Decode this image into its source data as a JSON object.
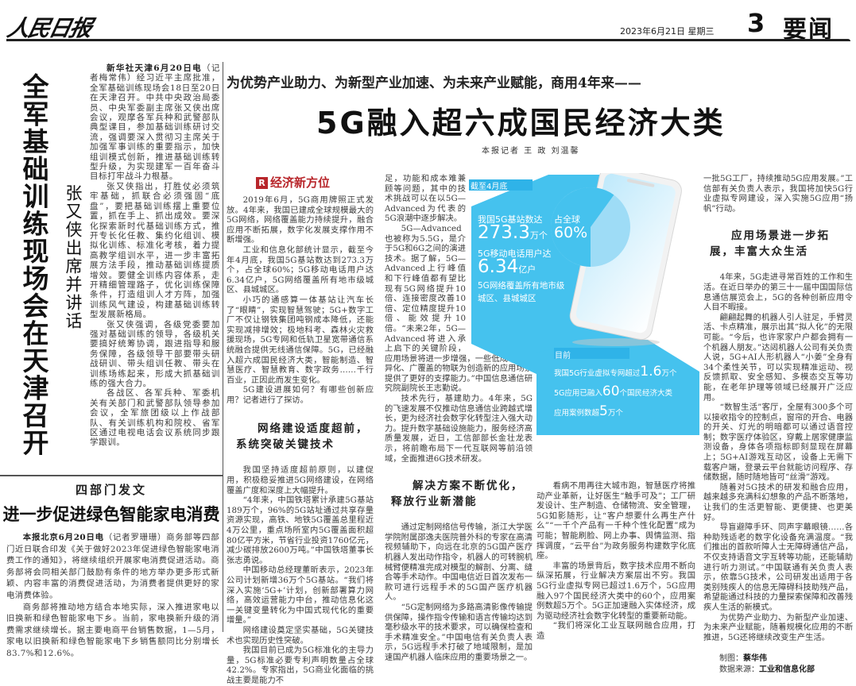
{
  "masthead": {
    "logo": "人民日报",
    "date": "2023年6月21日 星期三",
    "page_number": "3",
    "section": "要闻"
  },
  "left_story": {
    "headline": "全军基础训练现场会在天津召开",
    "subheadline": "张又侠出席并讲话",
    "dateline": "新华社天津6月20日电",
    "paragraphs": [
      "（记者梅常伟）经习近平主席批准，全军基础训练现场会18日至20日在天津召开。中共中央政治局委员、中央军委副主席张又侠出席会议，观摩各军兵种和武警部队典型课目，参加基础训练研讨交流，强调要深入贯彻习主席关于加强军事训练的重要指示，加快组训模式创新，推进基础训练转型升级，为实现建军一百年奋斗目标打牢战斗力根基。",
      "张又侠指出，打胜仗必须筑牢基础，抓联合必须强固“底盘”，要把基础训练摆上重要位置，抓在手上、抓出成效。要深化探索新时代基础训练方式，推开专长化任教、集约化组训、模拟化训练、标准化考核，着力提高教学组训水平，进一步丰富拓展方法手段，推动基础训练提质增效。要健全训练内容体系，走开精细管理路子，优化训练保障条件，打造组训人才方阵，加强训练风气建设，构建基础训练转型发展新格局。",
      "张又侠强调，各级党委要加强对基础训练的领导，各级机关要搞好统筹协调，跟进指导和服务保障，各级领导干部要带头研战研训、带头组训任教、带头在训练场练起来，形成大抓基础训练的强大合力。",
      "各战区、各军兵种、军委机关有关部门和武警部队领导参加会议，全军旅团级以上作战部队、有关训练机构和院校、省军区通过电视电话会议系统同步跟学跟训。"
    ]
  },
  "bottom_story": {
    "kicker": "四部门发文",
    "headline": "进一步促进绿色智能家电消费",
    "dateline": "本报北京6月20日电",
    "paragraphs": [
      "（记者罗珊珊）商务部等四部门近日联合印发《关于做好2023年促进绿色智能家电消费工作的通知》，将继续组织开展家电消费促进活动。商务部将会同相关部门鼓励有条件的地方举办更多形式新颖、内容丰富的消费促进活动，为消费者提供更好的家电消费体验。",
      "商务部将推动地方结合本地实际，深入推进家电以旧换新和绿色智能家电下乡。当前，家电换新升级的消费需求继续增长。据主要电商平台销售数据，1—5月，家电以旧换新和绿色智能家电下乡销售额同比分别增长83.7%和12.6%。"
    ]
  },
  "main_story": {
    "kicker": "为优势产业助力、为新型产业加速、为未来产业赋能，商用4年来——",
    "title": "5G融入超六成国民经济大类",
    "byline": "本报记者  王 政  刘温馨",
    "column_tag_icon": "R",
    "column_tag": "经济新方位",
    "col1_paragraphs": [
      "2019年6月，5G商用牌照正式发放。4年来，我国已建成全球规模最大的5G网络，网络覆盖能力持续提升，融合应用不断拓展，数字化发展支撑作用不断增强。",
      "工业和信息化部统计显示，截至今年4月底，我国5G基站数达到273.3万个，占全球60%；5G移动电话用户达6.34亿户，5G网络覆盖所有地市级城区、县城城区。",
      "小巧的通感算一体基站让汽车长了“眼睛”，实现智慧驾驶；5G+数字工厂不仅让钢铁集团吨钢成本降低，还能实现减排增效；极地科考、森林火灾救援现场，5G专网和低轨卫星宽带通信系统融合提供无线通信保障。5G，已经融入超六成国民经济大类，智能制造、智慧医疗、智慧教育、数字政务……千行百业，正因此而发生变化。",
      "5G建设进展如何？有哪些创新应用？记者进行了探访。"
    ],
    "subhead1": "网络建设适度超前，系统突破关键技术",
    "col1b_paragraphs": [
      "我国坚持适度超前原则，以建促用，积极稳妥推进5G网络建设，在网络覆盖广度和深度上大幅提升。",
      "“4年来，中国铁塔累计承建5G基站189万个，96%的5G站址通过共享存量资源实现，高铁、地铁5G覆盖总里程近4万公里，重点场所室内5G覆盖面积超80亿平方米，节省行业投资1760亿元，减少碳排放2600万吨。”中国铁塔董事长张志勇说。",
      "中国移动总经理董昕表示，2023年公司计划新增36万个5G基站。“我们将深入实施‘5G+’计划，创新部署算力网络，高效运营能力中台，推动信息化这一关键变量转化为中国式现代化的重要增量。”",
      "网络建设奠定坚实基础，5G关键技术也实现历史性突破。",
      "我国目前已成为5G标准化的主导力量，5G标准必要专利声明数量占全球42.2%。专家指出，5G商业化面临的挑战主要是能力不"
    ],
    "col2_paragraphs": [
      "足，功能和成本难兼顾等问题，其中的技术挑战可以在以5G—Advanced为代表的5G浪潮中逐步解决。",
      "5G—Advanced也被称为5.5G，是介于5G和6G之间的演进技术。据了解，5G—Advanced上行峰值和下行峰值都有望比现有5G网络提升10倍、连接密度改善10倍、定位精度提升10倍、能效提升10倍。“未来2年，5G—Advanced将进入承上启下的关键阶段，应用场景将进一步增强，一些低成本、差异化、广覆盖的物联为创造新的应用场景提供了更好的支撑能力。”中国信息通信研究院副院长王志勤说。",
      "技术先行，基建助力。4年来，5G的飞速发展不仅推动信息通信业跨越式增长，更为经济社会数字化转型注入强大动力。提升数字基础设施能力，服务经济高质量发展，近日，工信部部长金壮龙表示，将前瞻布局下一代互联网等前沿领域，全面推进6G技术研发。"
    ],
    "subhead2": "解决方案不断优化，释放行业新潜能",
    "col2b_paragraphs": [
      "通过定制网络信号传输，浙江大学医学院附属邵逸夫医院普外科的专家在高清视频辅助下，向远在北京的5G国产医疗机器人发出动作指令，机器人的可转腕机械臂便精准完成对模型的解剖、分离、缝合等手术动作。中国电信近日首次发布一款可进行远程手术的5G国产医疗机器人。",
      "“5G定制网络为多路高清影像传输提供保障，操作指令传输和语言传输均达到毫秒级水平的技术要求，可以确保检查和手术精准安全。”中国电信有关负责人表示，5G远程手术打破了地域限制，是加速国产机器人临床应用的重要场景之一。"
    ],
    "col3_paragraphs": [
      "看病不用再往大城市跑，智慧医疗将推动产业革新，让好医生“触手可及”；工厂研发设计、生产制造、仓储物流、安全管理，5G如影随形，让“客户想要什么再生产什么”“一千个产品有一千种个性化配置”成为可能；智能刷脸、网上办事、舆情监测、指挥调度，“云平台”为政务服务构建数字化底座。",
      "丰富的场景背后，数字技术应用不断向纵深拓展，行业解决方案层出不穷。我国5G行业虚拟专网已超过1.6万个，5G应用融入97个国民经济大类中的60个，应用案例数超5万个。5G正加速融入实体经济，成为驱动经济社会数字化转型的重要新动能。",
      "“我们将深化工业互联网融合应用，打造"
    ],
    "col4_paragraphs": [
      "一批5G工厂，持续推动5G应用发展。”工信部有关负责人表示，我国将加快5G行业虚拟专网建设，深入实施5G应用“扬帆”行动。"
    ],
    "subhead3": "应用场景进一步拓展，丰富大众生活",
    "col4b_paragraphs": [
      "4年来，5G走进寻常百姓的工作和生活。在近日举办的第三十一届中国国际信息通信展览会上，5G的各种创新应用令人目不暇接。",
      "翩翩起舞的机器人引人驻足，手臂灵活、卡点精准，展示出其“拟人化”的无限可能。“今后，也许家家户户都会拥有一个机器人朋友。”达闼机器人公司有关负责人说，5G+AI人形机器人“小姜”全身有34个柔性关节，可以实现精准运动、视反馈抓取、安全感知、多模态交互等功能，在老年护理等领域已经展开广泛应用。",
      "“数智生活”客厅，全屋有300多个可以接收指令的控制点，窗帘的开合、电器的开关、灯光的明暗都可以通过语音控制；数字医疗体验区，穿戴上居家健康监测设备，身体各项指标即刻显现在屏幕上；5G+AI游戏互动区，设备上无需下载客户端，登录云平台就能访问程序、存储数据，随时随地皆可“丝滑”游戏。",
      "随着对5G技术的研发和融合应用，越来越多充满科幻想象的产品不断落地，让我们的生活更智能、更便捷、也更美好。",
      "导盲避障手环、同声字幕眼镜……各种助残适老的数字化设备充满温度。“我们推出的首款听障人士无障碍通信产品，不仅支持语音文字互转等功能，还能辅助进行听力测试。”中国联通有关负责人表示，依靠5G技术，公司研发出适用于各类别残疾人的信息无障碍科技助残产品，希望能通过科技的力量探索保障和改善残疾人生活的新模式。",
      "为优势产业助力、为新型产业加速、为未来产业赋能，随着规模化应用的不断推进，5G还将继续改变生产生活。"
    ],
    "credits": {
      "graphic_label": "制图：",
      "graphic_author": "蔡华伟",
      "source_label": "数据来源：",
      "source": "工业和信息化部"
    }
  },
  "infographic": {
    "colors": {
      "blue": "#45c2ee",
      "light_blue": "#9edcf6",
      "label_bar": "#2fb3e8"
    },
    "top_label": "截至4月底",
    "stat1_label": "我国5G基站数达",
    "stat1_value": "273.3",
    "stat1_unit": "万个",
    "pie_label": "占全球",
    "pie_value": "60%",
    "pie_fraction": 0.6,
    "stat2_label": "5G移动电话用户达",
    "stat2_value": "6.34",
    "stat2_unit": "亿户",
    "stat3_line1": "5G网络覆盖所有地市级",
    "stat3_line2": "城区、县城城区",
    "bottom_label": "目前",
    "b1_pre": "我国5G行业虚拟专网超过",
    "b1_value": "1.6",
    "b1_unit": "万个",
    "b2_pre": "5G应用已融入",
    "b2_value": "60",
    "b2_unit": "个国民经济大类",
    "b3_pre": "应用案例数超",
    "b3_value": "5",
    "b3_unit": "万个"
  }
}
